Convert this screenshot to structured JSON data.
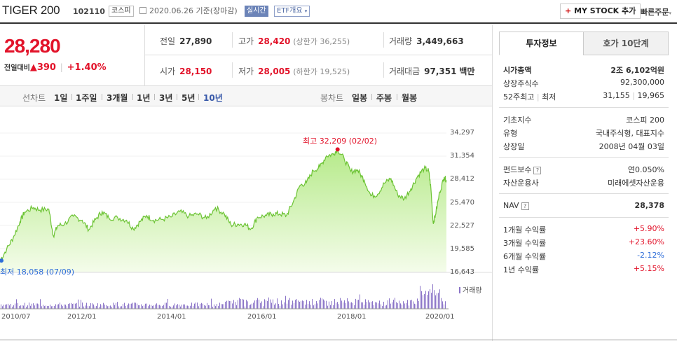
{
  "header": {
    "title": "TIGER 200",
    "code": "102110",
    "market_tag": "코스피",
    "date": "2020.06.26",
    "date_suffix": "기준(장마감)",
    "realtime_label": "실시간",
    "etf_button": "ETF개요",
    "mystock_plus": "+",
    "mystock_label": "MY STOCK 추가",
    "quick_order": "빠른주문"
  },
  "summary": {
    "price": "28,280",
    "change_label": "전일대비",
    "change_arrow": "▲",
    "change_value": "390",
    "change_pct": "+1.40%",
    "prev_close_label": "전일",
    "prev_close": "27,890",
    "open_label": "시가",
    "open": "28,150",
    "high_label": "고가",
    "high": "28,420",
    "upper_limit": "(상한가 36,255)",
    "low_label": "저가",
    "low": "28,005",
    "lower_limit": "(하한가 19,525)",
    "volume_label": "거래량",
    "volume": "3,449,663",
    "amount_label": "거래대금",
    "amount": "97,351",
    "amount_unit": "백만"
  },
  "period_bar": {
    "line_label": "선차트",
    "line_periods": [
      "1일",
      "1주일",
      "3개월",
      "1년",
      "3년",
      "5년",
      "10년"
    ],
    "selected": "10년",
    "candle_label": "봉차트",
    "candle_periods": [
      "일봉",
      "주봉",
      "월봉"
    ]
  },
  "chart_data": {
    "type": "area",
    "y_ticks": [
      "34,297",
      "31,354",
      "28,412",
      "25,470",
      "22,527",
      "19,585",
      "16,643"
    ],
    "ylim": [
      16643,
      34297
    ],
    "x_ticks": [
      "2010/07",
      "2012/01",
      "2014/01",
      "2016/01",
      "2018/01",
      "2020/01"
    ],
    "x_tick_years": [
      2010.5,
      2012.0,
      2014.0,
      2016.0,
      2018.0,
      2020.0
    ],
    "xlim": [
      2010.45,
      2020.5
    ],
    "max_label": "최고 32,209 (02/02)",
    "min_label": "최저 18,058 (07/09)",
    "volume_label": "거래량",
    "series": [
      {
        "x": [
          2010.45,
          2010.6,
          2010.75,
          2010.9,
          2011.0,
          2011.2,
          2011.35,
          2011.55,
          2011.65,
          2011.75,
          2011.9,
          2012.1,
          2012.3,
          2012.45,
          2012.6,
          2012.75,
          2012.9,
          2013.1,
          2013.3,
          2013.45,
          2013.6,
          2013.75,
          2013.9,
          2014.1,
          2014.3,
          2014.5,
          2014.7,
          2014.9,
          2015.1,
          2015.3,
          2015.5,
          2015.65,
          2015.8,
          2015.95,
          2016.1,
          2016.25,
          2016.45,
          2016.6,
          2016.75,
          2016.9,
          2017.05,
          2017.2,
          2017.35,
          2017.5,
          2017.65,
          2017.8,
          2017.95,
          2018.05,
          2018.2,
          2018.35,
          2018.5,
          2018.65,
          2018.8,
          2018.95,
          2019.1,
          2019.25,
          2019.4,
          2019.55,
          2019.7,
          2019.85,
          2020.0,
          2020.1,
          2020.15,
          2020.2,
          2020.25,
          2020.35,
          2020.45,
          2020.5
        ],
        "values": [
          18058,
          19500,
          21000,
          23000,
          24200,
          24800,
          24500,
          24600,
          21200,
          22500,
          22700,
          23700,
          23200,
          22000,
          23300,
          24300,
          23500,
          23500,
          23200,
          22100,
          23000,
          23800,
          23200,
          23300,
          23600,
          24300,
          23700,
          24000,
          23400,
          24800,
          24000,
          22600,
          22700,
          22700,
          22100,
          23600,
          23800,
          24000,
          24000,
          23800,
          25500,
          27600,
          28000,
          29500,
          30000,
          31400,
          31600,
          32209,
          31000,
          29400,
          29600,
          28300,
          26300,
          26500,
          27900,
          28500,
          26500,
          25900,
          27200,
          28800,
          29800,
          29500,
          27300,
          22900,
          23800,
          26800,
          28700,
          28280
        ]
      }
    ]
  },
  "right_panel": {
    "tab_active": "투자정보",
    "tab_other": "호가 10단계",
    "market_cap_label": "시가총액",
    "market_cap": "2조 6,102억원",
    "shares_label": "상장주식수",
    "shares": "92,300,000",
    "w52_label": "52주최고",
    "w52_low_label": "최저",
    "w52_high": "31,155",
    "w52_low": "19,965",
    "base_index_label": "기초지수",
    "base_index": "코스피 200",
    "type_label": "유형",
    "type": "국내주식형, 대표지수",
    "listed_label": "상장일",
    "listed": "2008년 04월 03일",
    "fee_label": "펀드보수",
    "fee": "연0.050%",
    "manager_label": "자산운용사",
    "manager": "미래에셋자산운용",
    "nav_label": "NAV",
    "nav": "28,378",
    "r1m_label": "1개월 수익률",
    "r1m": "+5.90%",
    "r3m_label": "3개월 수익률",
    "r3m": "+23.60%",
    "r6m_label": "6개월 수익률",
    "r6m": "-2.12%",
    "r1y_label": "1년 수익률",
    "r1y": "+5.15%",
    "help_icon_text": "?"
  }
}
